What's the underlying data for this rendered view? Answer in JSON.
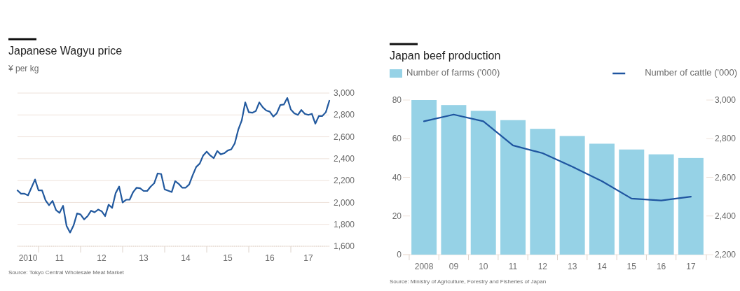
{
  "chart_data": [
    {
      "type": "line",
      "title": "Japanese Wagyu price",
      "subtitle": "¥ per kg",
      "annotations": [
        "Source: Tokyo Central Wholesale Meat Market"
      ],
      "series": [
        {
          "color": "#22599e",
          "x": [
            "2010-07",
            "2010-08",
            "2010-09",
            "2010-10",
            "2010-12",
            "2011-01",
            "2011-02",
            "2011-03",
            "2011-04",
            "2011-05",
            "2011-06",
            "2011-07",
            "2011-08",
            "2011-09",
            "2011-10",
            "2011-11",
            "2011-12",
            "2012-01",
            "2012-02",
            "2012-03",
            "2012-04",
            "2012-05",
            "2012-06",
            "2012-07",
            "2012-08",
            "2012-09",
            "2012-10",
            "2012-11",
            "2012-12",
            "2013-01",
            "2013-02",
            "2013-03",
            "2013-04",
            "2013-05",
            "2013-06",
            "2013-07",
            "2013-08",
            "2013-09",
            "2013-10",
            "2013-11",
            "2013-12",
            "2014-01",
            "2014-03",
            "2014-04",
            "2014-05",
            "2014-06",
            "2014-07",
            "2014-08",
            "2014-09",
            "2014-10",
            "2014-11",
            "2014-12",
            "2015-01",
            "2015-02",
            "2015-03",
            "2015-04",
            "2015-05",
            "2015-06",
            "2015-07",
            "2015-08",
            "2015-09",
            "2015-10",
            "2015-11",
            "2015-12",
            "2016-01",
            "2016-02",
            "2016-03",
            "2016-04",
            "2016-05",
            "2016-06",
            "2016-07",
            "2016-08",
            "2016-09",
            "2016-10",
            "2016-11",
            "2016-12",
            "2017-01",
            "2017-02",
            "2017-03",
            "2017-04",
            "2017-05",
            "2017-06",
            "2017-07",
            "2017-08",
            "2017-09",
            "2017-10",
            "2017-11",
            "2017-12"
          ],
          "values": [
            2110,
            2080,
            2080,
            2065,
            2210,
            2110,
            2110,
            2020,
            1975,
            2015,
            1930,
            1905,
            1970,
            1785,
            1725,
            1790,
            1900,
            1890,
            1845,
            1875,
            1925,
            1910,
            1935,
            1920,
            1875,
            1980,
            1950,
            2085,
            2145,
            2000,
            2025,
            2025,
            2095,
            2135,
            2130,
            2105,
            2105,
            2145,
            2175,
            2265,
            2260,
            2120,
            2095,
            2195,
            2170,
            2135,
            2135,
            2165,
            2250,
            2325,
            2355,
            2430,
            2465,
            2430,
            2405,
            2470,
            2440,
            2450,
            2475,
            2485,
            2540,
            2665,
            2750,
            2915,
            2825,
            2820,
            2835,
            2915,
            2870,
            2840,
            2830,
            2785,
            2815,
            2890,
            2895,
            2955,
            2850,
            2815,
            2800,
            2845,
            2810,
            2800,
            2810,
            2720,
            2790,
            2790,
            2825,
            2930
          ]
        }
      ],
      "xlim": [
        "2010-07",
        "2017-12"
      ],
      "xticks": [
        {
          "value": "2010-10",
          "label": "2010"
        },
        {
          "value": "2011-07",
          "label": "11"
        },
        {
          "value": "2012-07",
          "label": "12"
        },
        {
          "value": "2013-07",
          "label": "13"
        },
        {
          "value": "2014-07",
          "label": "14"
        },
        {
          "value": "2015-07",
          "label": "15"
        },
        {
          "value": "2016-07",
          "label": "16"
        },
        {
          "value": "2017-06",
          "label": "17"
        },
        {
          "value": "2011-01",
          "label": null
        },
        {
          "value": "2012-01",
          "label": null
        },
        {
          "value": "2013-01",
          "label": null
        },
        {
          "value": "2014-01",
          "label": null
        },
        {
          "value": "2015-01",
          "label": null
        },
        {
          "value": "2016-01",
          "label": null
        },
        {
          "value": "2017-01",
          "label": null
        }
      ],
      "ylim": [
        1600,
        3000
      ],
      "yticks": [
        {
          "value": 1600,
          "label": "1,600"
        },
        {
          "value": 1800,
          "label": "1,800"
        },
        {
          "value": 2000,
          "label": "2,000"
        },
        {
          "value": 2200,
          "label": "2,200"
        },
        {
          "value": 2400,
          "label": "2,400"
        },
        {
          "value": 2600,
          "label": "2,600"
        },
        {
          "value": 2800,
          "label": "2,800"
        },
        {
          "value": 3000,
          "label": "3,000"
        }
      ],
      "grid": "y"
    },
    {
      "type": "bar",
      "title": "Japan beef production",
      "annotations": [
        "Source: Ministry of Agriculture, Forestry and Fisheries of Japan"
      ],
      "categories": [
        "2008",
        "09",
        "10",
        "11",
        "12",
        "13",
        "14",
        "15",
        "16",
        "17"
      ],
      "series": [
        {
          "name": "Number of farms ('000)",
          "type": "bar",
          "color": "#96d2e6",
          "values": [
            80,
            77.4,
            74.4,
            69.6,
            65.1,
            61.4,
            57.4,
            54.4,
            51.9,
            50.0
          ]
        },
        {
          "name": "Number of cattle ('000)",
          "type": "line",
          "axis": "y2",
          "color": "#1f55a0",
          "values": [
            2890,
            2925,
            2890,
            2765,
            2725,
            2655,
            2580,
            2490,
            2480,
            2500
          ]
        }
      ],
      "ylim": [
        0,
        80
      ],
      "yticks": [
        0,
        20,
        40,
        60,
        80
      ],
      "y2lim": [
        2200,
        3000
      ],
      "y2ticks": [
        {
          "value": 2200,
          "label": "2,200"
        },
        {
          "value": 2400,
          "label": "2,400"
        },
        {
          "value": 2600,
          "label": "2,600"
        },
        {
          "value": 2800,
          "label": "2,800"
        },
        {
          "value": 3000,
          "label": "3,000"
        }
      ],
      "legend": "top"
    }
  ]
}
